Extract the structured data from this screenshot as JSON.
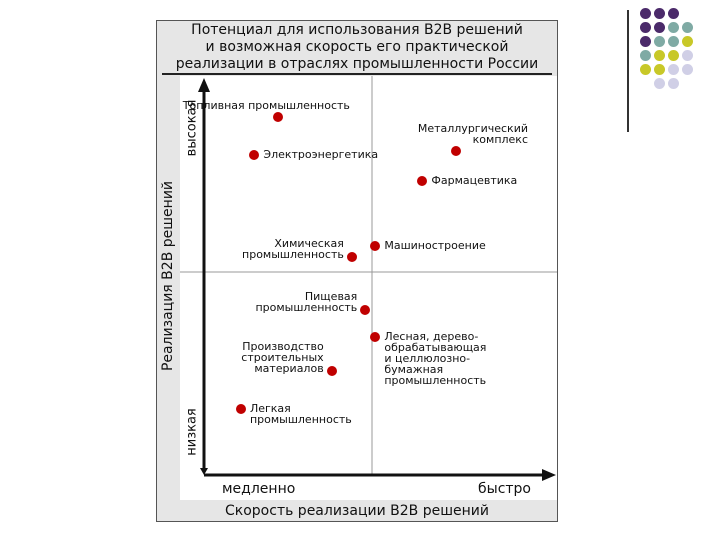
{
  "colors": {
    "point": "#c00000",
    "frame_bg": "#e6e6e6",
    "plot_bg": "#ffffff",
    "deco_purple": "#4b2a6a",
    "deco_teal": "#7faaa4",
    "deco_olive": "#c8c828",
    "deco_lavender": "#d0cfe6"
  },
  "decoration": {
    "rows": [
      [
        "deco_purple",
        "deco_purple",
        "deco_purple",
        ""
      ],
      [
        "deco_purple",
        "deco_purple",
        "deco_teal",
        "deco_teal"
      ],
      [
        "deco_purple",
        "deco_teal",
        "deco_teal",
        "deco_olive"
      ],
      [
        "deco_teal",
        "deco_olive",
        "deco_olive",
        "deco_lavender"
      ],
      [
        "deco_olive",
        "deco_olive",
        "deco_lavender",
        "deco_lavender"
      ],
      [
        "",
        "deco_lavender",
        "deco_lavender",
        ""
      ]
    ]
  },
  "chart_data": {
    "type": "scatter",
    "title": [
      "Потенциал для использования В2В решений",
      "и возможная скорость его практической",
      "реализации в отраслях промышленности России"
    ],
    "xlabel": "Скорость реализации В2В решений",
    "ylabel": "Реализация В2В решений",
    "x_ticks": [
      "медленно",
      "быстро"
    ],
    "y_ticks": [
      "высокая",
      "низкая"
    ],
    "xlim": [
      0,
      10
    ],
    "ylim": [
      0,
      10
    ],
    "divider": {
      "x": 4.8,
      "y": 4.8
    },
    "grid": false,
    "points": [
      {
        "label": "Топливная промышленность",
        "x": 2.2,
        "y": 9.3,
        "label_pos": "above-left"
      },
      {
        "label": "Электроэнергетика",
        "x": 1.5,
        "y": 8.3,
        "label_pos": "right"
      },
      {
        "label": "Металлургический\nкомплекс",
        "x": 7.5,
        "y": 8.4,
        "label_pos": "above-left"
      },
      {
        "label": "Фармацевтика",
        "x": 6.5,
        "y": 7.6,
        "label_pos": "right"
      },
      {
        "label": "Машиностроение",
        "x": 5.1,
        "y": 5.9,
        "label_pos": "right"
      },
      {
        "label": "Химическая\nпромышленность",
        "x": 4.4,
        "y": 5.6,
        "label_pos": "left"
      },
      {
        "label": "Пищевая\nпромышленность",
        "x": 4.8,
        "y": 4.2,
        "label_pos": "left"
      },
      {
        "label": "Лесная, дерево-\nобрабатывающая\nи целлюлозно-\nбумажная\nпромышленность",
        "x": 5.1,
        "y": 3.5,
        "label_pos": "right"
      },
      {
        "label": "Производство\nстроительных\nматериалов",
        "x": 3.8,
        "y": 2.6,
        "label_pos": "left"
      },
      {
        "label": "Легкая\nпромышленность",
        "x": 1.1,
        "y": 1.6,
        "label_pos": "right"
      }
    ]
  }
}
